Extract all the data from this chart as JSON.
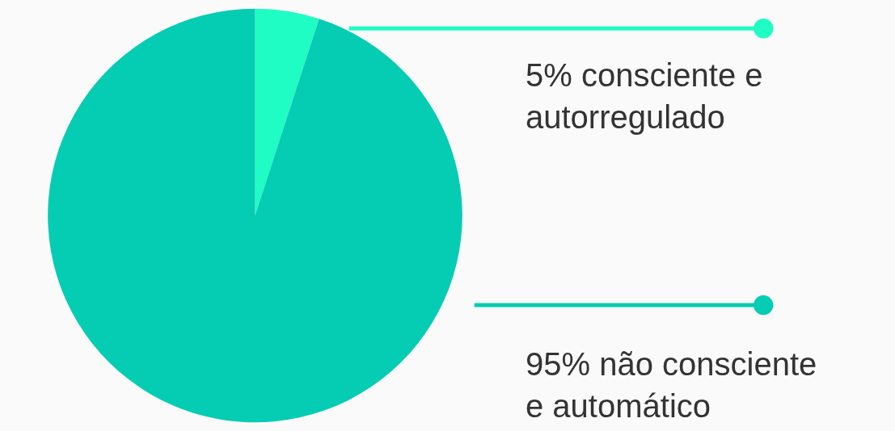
{
  "chart_data": {
    "type": "pie",
    "categories": [
      "consciente e autorregulado",
      "não consciente e automático"
    ],
    "values": [
      5,
      95
    ],
    "value_labels": [
      "5%",
      "95%"
    ],
    "colors": [
      "#1ffcc4",
      "#04cdb4"
    ],
    "legend": "right"
  }
}
